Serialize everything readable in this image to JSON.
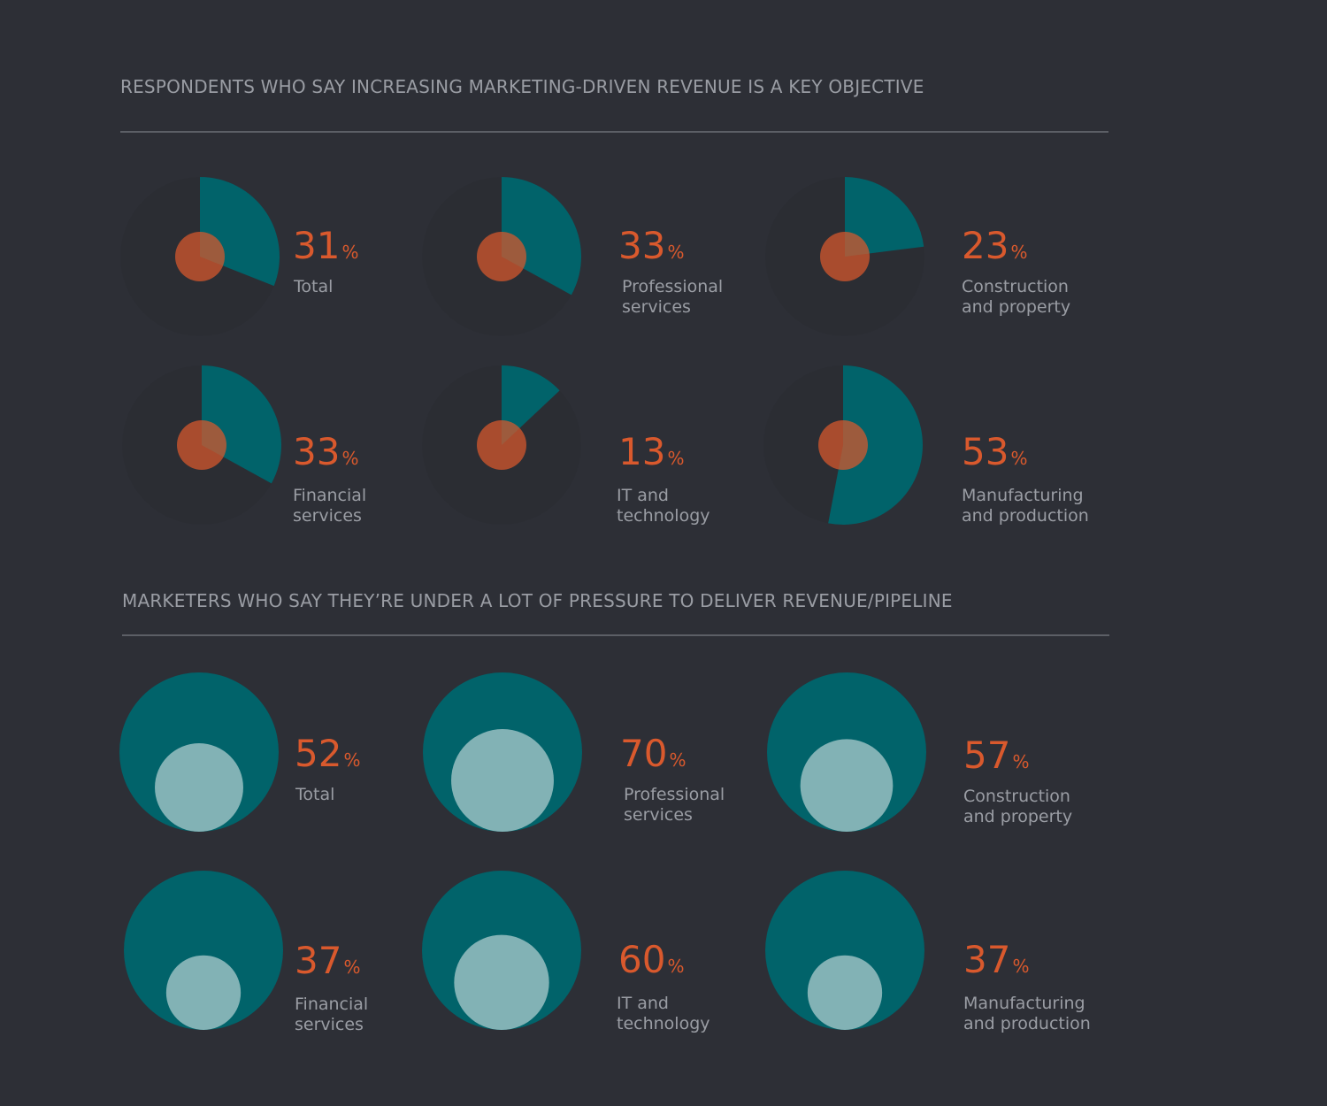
{
  "colors": {
    "background": "#2d2f36",
    "teal": "#01636a",
    "orange": "#d9592d",
    "light_teal": "#82b2b5",
    "text_gray": "#9a9da4",
    "rule": "#5c5f66"
  },
  "sections": [
    {
      "title": "RESPONDENTS WHO SAY INCREASING MARKETING-DRIVEN REVENUE IS A KEY OBJECTIVE"
    },
    {
      "title": "MARKETERS WHO SAY THEY’RE UNDER A LOT OF PRESSURE TO DELIVER REVENUE/PIPELINE"
    }
  ],
  "percent_sign": "%",
  "chart_data": [
    {
      "type": "pie",
      "title": "RESPONDENTS WHO SAY INCREASING MARKETING-DRIVEN REVENUE IS A KEY OBJECTIVE",
      "unit": "%",
      "categories": [
        [
          "Total"
        ],
        [
          "Professional",
          "services"
        ],
        [
          "Construction",
          "and property"
        ],
        [
          "Financial",
          "services"
        ],
        [
          "IT and",
          "technology"
        ],
        [
          "Manufacturing",
          "and production"
        ]
      ],
      "values": [
        31,
        33,
        23,
        33,
        13,
        53
      ]
    },
    {
      "type": "bubble",
      "title": "MARKETERS WHO SAY THEY’RE UNDER A LOT OF PRESSURE TO DELIVER REVENUE/PIPELINE",
      "unit": "%",
      "categories": [
        [
          "Total"
        ],
        [
          "Professional",
          "services"
        ],
        [
          "Construction",
          "and property"
        ],
        [
          "Financial",
          "services"
        ],
        [
          "IT and",
          "technology"
        ],
        [
          "Manufacturing",
          "and production"
        ]
      ],
      "values": [
        52,
        70,
        57,
        37,
        60,
        37
      ]
    }
  ]
}
